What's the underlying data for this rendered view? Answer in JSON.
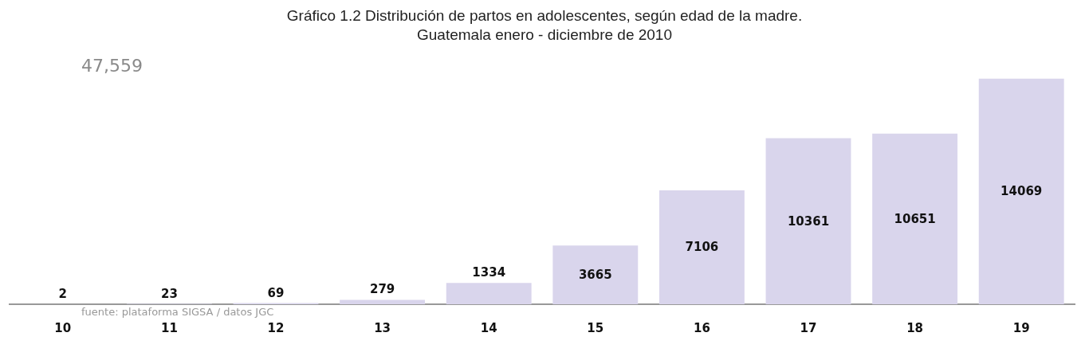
{
  "chart_data": {
    "type": "bar",
    "title": "Gráfico 1.2 Distribución de partos en adolescentes, según edad de la madre.\nGuatemala enero - diciembre de 2010",
    "categories": [
      "10",
      "11",
      "12",
      "13",
      "14",
      "15",
      "16",
      "17",
      "18",
      "19"
    ],
    "values": [
      2,
      23,
      69,
      279,
      1334,
      3665,
      7106,
      10361,
      10651,
      14069
    ],
    "color": "#d9d5ec",
    "data_labels": true,
    "grid": false,
    "legend": false,
    "annotations": [
      "47,559",
      "fuente: plataforma SIGSA / datos JGC"
    ]
  }
}
